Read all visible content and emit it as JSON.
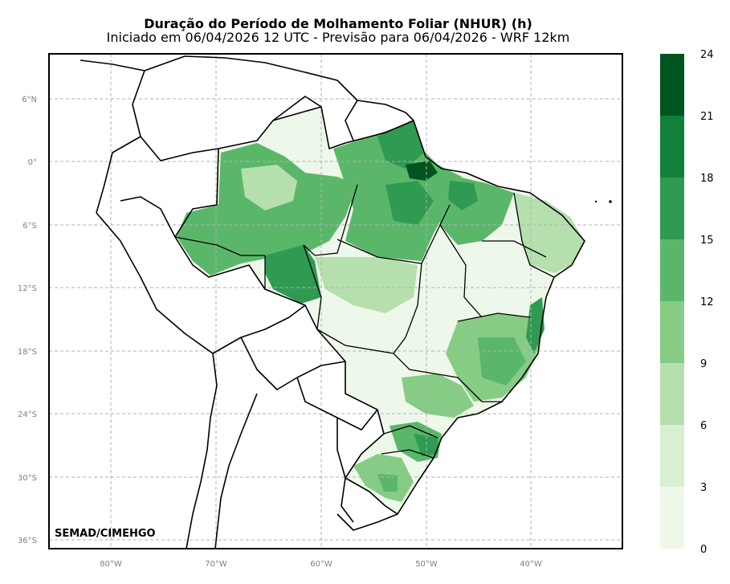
{
  "title": "Duração do Período de Molhamento Foliar (NHUR) (h)",
  "subtitle": "Iniciado em 06/04/2026 12 UTC - Previsão para 06/04/2026 - WRF 12km",
  "credit": "SEMAD/CIMEHGO",
  "lat_ticks": [
    "6°N",
    "0°",
    "6°S",
    "12°S",
    "18°S",
    "24°S",
    "30°S",
    "36°S"
  ],
  "lon_ticks": [
    "80°W",
    "70°W",
    "60°W",
    "50°W",
    "40°W"
  ],
  "colorbar": {
    "labels": [
      "24",
      "21",
      "18",
      "15",
      "12",
      "9",
      "6",
      "3",
      "0"
    ],
    "colors": [
      "#00541f",
      "#11803a",
      "#2f9a52",
      "#5ab76a",
      "#87cc85",
      "#b5e0ae",
      "#d8efd2",
      "#eef8ea"
    ]
  },
  "field_colors": {
    "lightest": "#eef8ea",
    "light": "#d8efd2",
    "mid_light": "#b5e0ae",
    "mid": "#87cc85",
    "medium": "#5ab76a",
    "dark": "#2f9a52",
    "darker": "#11803a",
    "darkest": "#00541f"
  }
}
